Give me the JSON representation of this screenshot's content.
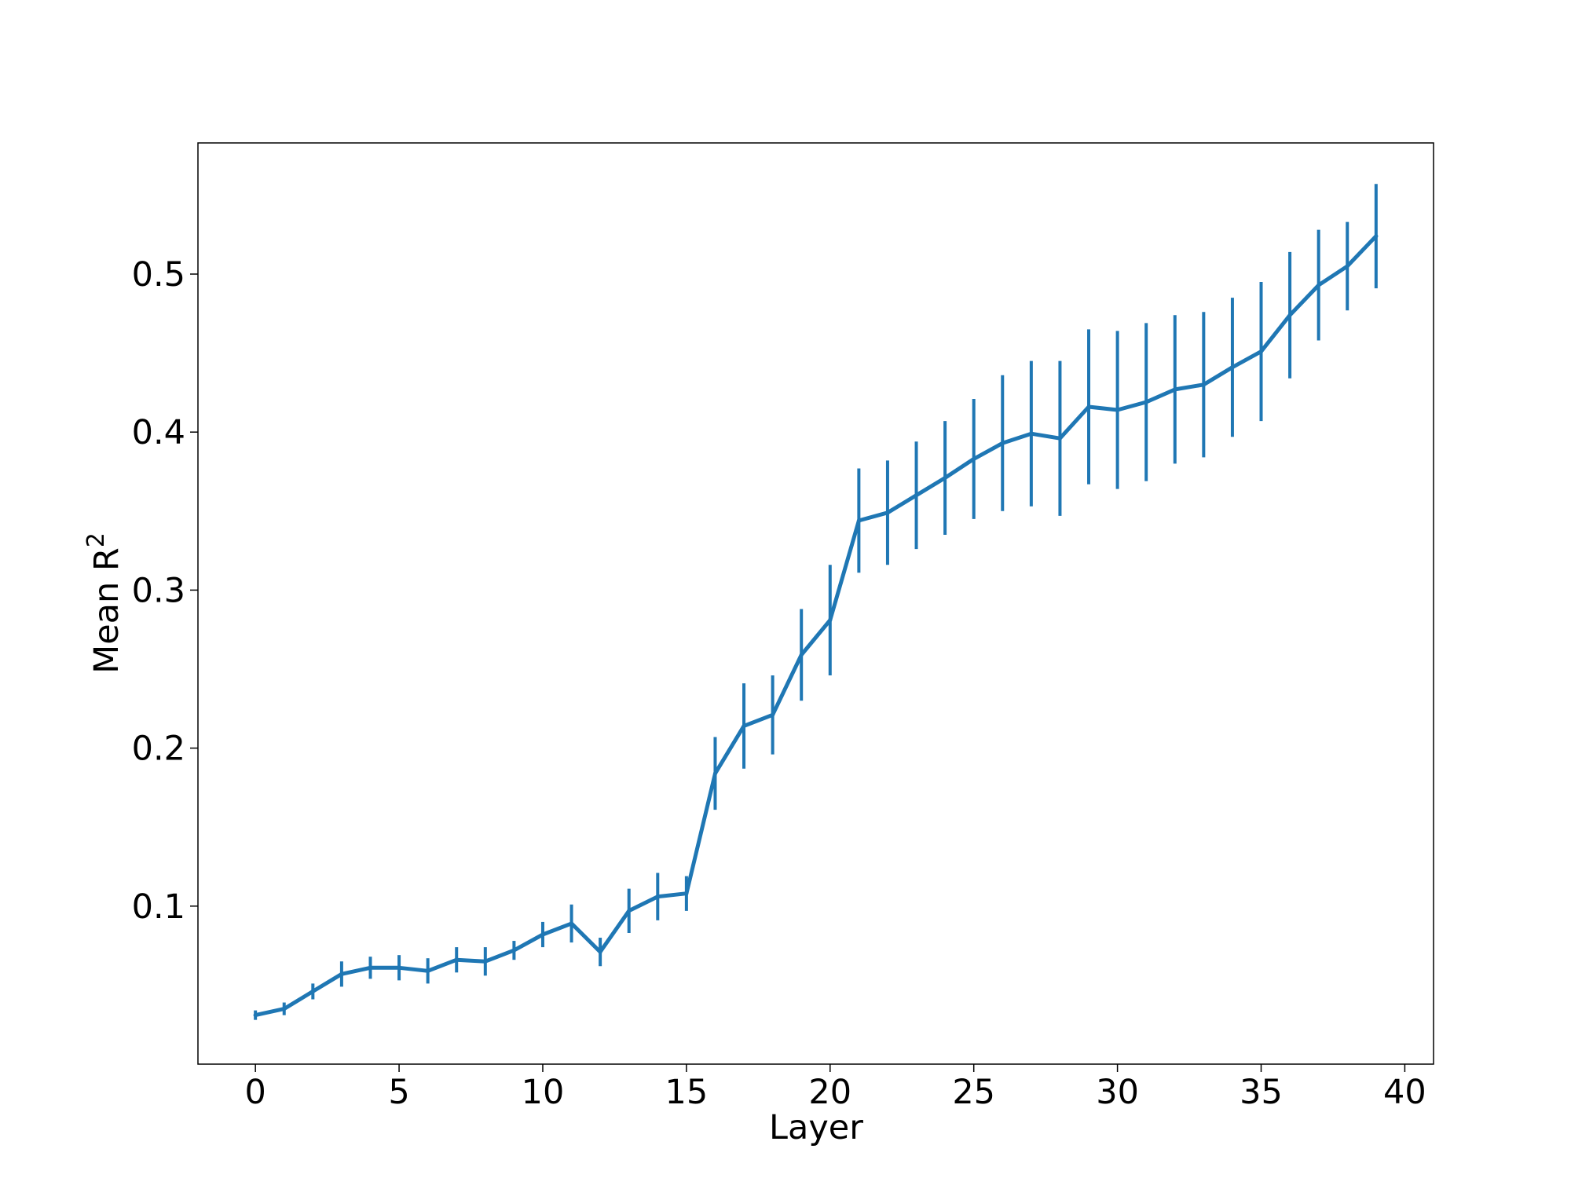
{
  "chart_data": {
    "type": "line",
    "title": "",
    "xlabel": "Layer",
    "ylabel": "Mean R",
    "ylabel_superscript": "2",
    "xlim": [
      -2,
      41
    ],
    "ylim": [
      0.0,
      0.583
    ],
    "xticks": [
      0,
      5,
      10,
      15,
      20,
      25,
      30,
      35,
      40
    ],
    "xtick_labels": [
      "0",
      "5",
      "10",
      "15",
      "20",
      "25",
      "30",
      "35",
      "40"
    ],
    "yticks": [
      0.1,
      0.2,
      0.3,
      0.4,
      0.5
    ],
    "ytick_labels": [
      "0.1",
      "0.2",
      "0.3",
      "0.4",
      "0.5"
    ],
    "grid": false,
    "line_color": "#1f77b4",
    "series": [
      {
        "x": [
          0,
          1,
          2,
          3,
          4,
          5,
          6,
          7,
          8,
          9,
          10,
          11,
          12,
          13,
          14,
          15,
          16,
          17,
          18,
          19,
          20,
          21,
          22,
          23,
          24,
          25,
          26,
          27,
          28,
          29,
          30,
          31,
          32,
          33,
          34,
          35,
          36,
          37,
          38,
          39
        ],
        "values": [
          0.031,
          0.035,
          0.046,
          0.057,
          0.061,
          0.061,
          0.059,
          0.066,
          0.065,
          0.072,
          0.082,
          0.089,
          0.071,
          0.097,
          0.106,
          0.108,
          0.184,
          0.214,
          0.221,
          0.259,
          0.281,
          0.344,
          0.349,
          0.36,
          0.371,
          0.383,
          0.393,
          0.399,
          0.396,
          0.416,
          0.414,
          0.419,
          0.427,
          0.43,
          0.441,
          0.451,
          0.474,
          0.493,
          0.505,
          0.524
        ],
        "error": [
          0.003,
          0.004,
          0.005,
          0.008,
          0.007,
          0.008,
          0.008,
          0.008,
          0.009,
          0.006,
          0.008,
          0.012,
          0.009,
          0.014,
          0.015,
          0.011,
          0.023,
          0.027,
          0.025,
          0.029,
          0.035,
          0.033,
          0.033,
          0.034,
          0.036,
          0.038,
          0.043,
          0.046,
          0.049,
          0.049,
          0.05,
          0.05,
          0.047,
          0.046,
          0.044,
          0.044,
          0.04,
          0.035,
          0.028,
          0.033
        ]
      }
    ]
  }
}
